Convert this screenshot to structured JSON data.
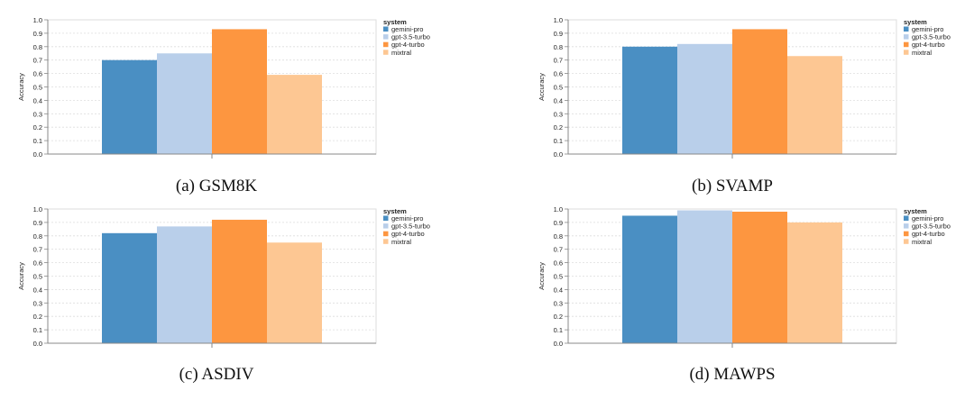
{
  "chart_data": [
    {
      "type": "bar",
      "caption": "(a) GSM8K",
      "ylabel": "Accuracy",
      "ylim": [
        0,
        1
      ],
      "yticks": [
        "0.0",
        "0.1",
        "0.2",
        "0.3",
        "0.4",
        "0.5",
        "0.6",
        "0.7",
        "0.8",
        "0.9",
        "1.0"
      ],
      "grid": true,
      "legend_title": "system",
      "legend_position": "right",
      "series": [
        {
          "name": "gemini-pro",
          "value": 0.7,
          "color": "#4a8fc3"
        },
        {
          "name": "gpt-3.5-turbo",
          "value": 0.75,
          "color": "#b9cfea"
        },
        {
          "name": "gpt-4-turbo",
          "value": 0.93,
          "color": "#fd9640"
        },
        {
          "name": "mixtral",
          "value": 0.59,
          "color": "#fdc793"
        }
      ]
    },
    {
      "type": "bar",
      "caption": "(b) SVAMP",
      "ylabel": "Accuracy",
      "ylim": [
        0,
        1
      ],
      "yticks": [
        "0.0",
        "0.1",
        "0.2",
        "0.3",
        "0.4",
        "0.5",
        "0.6",
        "0.7",
        "0.8",
        "0.9",
        "1.0"
      ],
      "grid": true,
      "legend_title": "system",
      "legend_position": "right",
      "series": [
        {
          "name": "gemini-pro",
          "value": 0.8,
          "color": "#4a8fc3"
        },
        {
          "name": "gpt-3.5-turbo",
          "value": 0.82,
          "color": "#b9cfea"
        },
        {
          "name": "gpt-4-turbo",
          "value": 0.93,
          "color": "#fd9640"
        },
        {
          "name": "mixtral",
          "value": 0.73,
          "color": "#fdc793"
        }
      ]
    },
    {
      "type": "bar",
      "caption": "(c) ASDIV",
      "ylabel": "Accuracy",
      "ylim": [
        0,
        1
      ],
      "yticks": [
        "0.0",
        "0.1",
        "0.2",
        "0.3",
        "0.4",
        "0.5",
        "0.6",
        "0.7",
        "0.8",
        "0.9",
        "1.0"
      ],
      "grid": true,
      "legend_title": "system",
      "legend_position": "right",
      "series": [
        {
          "name": "gemini-pro",
          "value": 0.82,
          "color": "#4a8fc3"
        },
        {
          "name": "gpt-3.5-turbo",
          "value": 0.87,
          "color": "#b9cfea"
        },
        {
          "name": "gpt-4-turbo",
          "value": 0.92,
          "color": "#fd9640"
        },
        {
          "name": "mixtral",
          "value": 0.75,
          "color": "#fdc793"
        }
      ]
    },
    {
      "type": "bar",
      "caption": "(d) MAWPS",
      "ylabel": "Accuracy",
      "ylim": [
        0,
        1
      ],
      "yticks": [
        "0.0",
        "0.1",
        "0.2",
        "0.3",
        "0.4",
        "0.5",
        "0.6",
        "0.7",
        "0.8",
        "0.9",
        "1.0"
      ],
      "grid": true,
      "legend_title": "system",
      "legend_position": "right",
      "series": [
        {
          "name": "gemini-pro",
          "value": 0.95,
          "color": "#4a8fc3"
        },
        {
          "name": "gpt-3.5-turbo",
          "value": 0.99,
          "color": "#b9cfea"
        },
        {
          "name": "gpt-4-turbo",
          "value": 0.98,
          "color": "#fd9640"
        },
        {
          "name": "mixtral",
          "value": 0.9,
          "color": "#fdc793"
        }
      ]
    }
  ]
}
